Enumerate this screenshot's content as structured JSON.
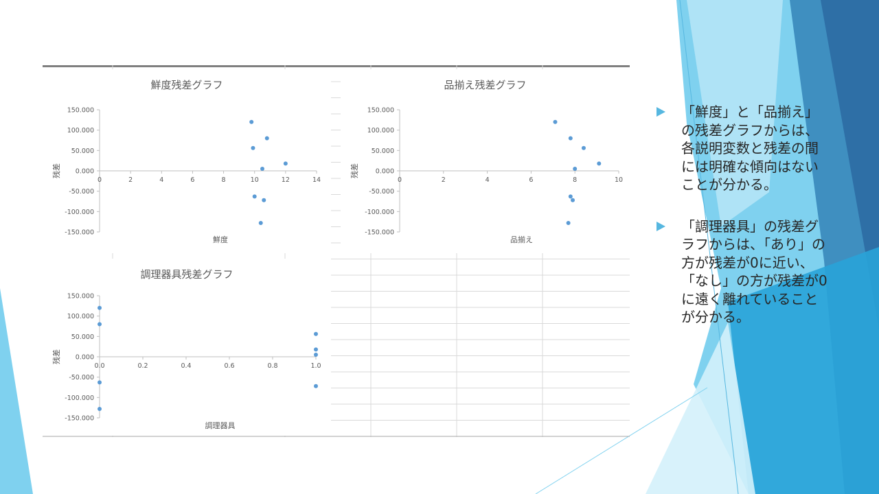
{
  "colors": {
    "point": "#5b9bd5",
    "axis": "#bfbfbf",
    "label": "#595959",
    "accent": "#56b7e0"
  },
  "bullets": [
    {
      "text": "「鮮度」と「品揃え」の残差グラフからは、各説明変数と残差の間には明確な傾向はないことが分かる。"
    },
    {
      "text": "「調理器具」の残差グラフからは、「あり」の方が残差が0に近い、「なし」の方が残差が0に遠く離れていることが分かる。"
    }
  ],
  "chart_data": [
    {
      "type": "scatter",
      "title": "鮮度残差グラフ",
      "xlabel": "鮮度",
      "ylabel": "残差",
      "xlim": [
        0,
        14
      ],
      "xticks": [
        "0",
        "2",
        "4",
        "6",
        "8",
        "10",
        "12",
        "14"
      ],
      "ylim": [
        -150,
        150
      ],
      "yticks": [
        "150.000",
        "100.000",
        "50.000",
        "0.000",
        "-50.000",
        "-100.000",
        "-150.000"
      ],
      "x": [
        9.8,
        9.9,
        10.0,
        10.5,
        10.6,
        10.8,
        12.0,
        10.4
      ],
      "y": [
        120,
        56,
        -63,
        5,
        -72,
        80,
        18,
        -128
      ]
    },
    {
      "type": "scatter",
      "title": "品揃え残差グラフ",
      "xlabel": "品揃え",
      "ylabel": "残差",
      "xlim": [
        0,
        10
      ],
      "xticks": [
        "0",
        "2",
        "4",
        "6",
        "8",
        "10"
      ],
      "ylim": [
        -150,
        150
      ],
      "yticks": [
        "150.000",
        "100.000",
        "50.000",
        "0.000",
        "-50.000",
        "-100.000",
        "-150.000"
      ],
      "x": [
        7.1,
        7.8,
        8.0,
        8.4,
        9.1,
        7.8,
        7.9,
        7.7
      ],
      "y": [
        120,
        80,
        5,
        56,
        18,
        -63,
        -72,
        -128
      ]
    },
    {
      "type": "scatter",
      "title": "調理器具残差グラフ",
      "xlabel": "調理器具",
      "ylabel": "残差",
      "xlim": [
        0,
        1
      ],
      "xticks": [
        "0.0",
        "0.2",
        "0.4",
        "0.6",
        "0.8",
        "1.0"
      ],
      "ylim": [
        -150,
        150
      ],
      "yticks": [
        "150.000",
        "100.000",
        "50.000",
        "0.000",
        "-50.000",
        "-100.000",
        "-150.000"
      ],
      "x": [
        0,
        0,
        0,
        0,
        1,
        1,
        1,
        1
      ],
      "y": [
        120,
        80,
        -63,
        -128,
        56,
        18,
        5,
        -72
      ]
    }
  ]
}
